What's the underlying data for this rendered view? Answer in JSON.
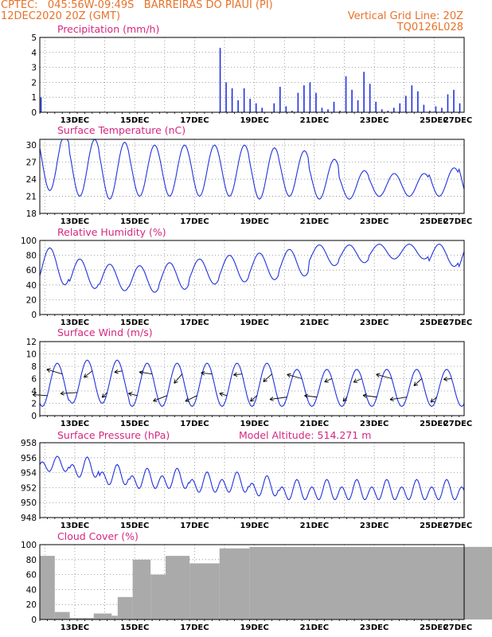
{
  "header": {
    "line1_left": "CPTEC:   045:56W-09:49S   BARREIRAS DO PIAUI (PI)",
    "line2_left": "12DEC2020 20Z (GMT)",
    "line2_right": "Vertical Grid Line: 20Z",
    "line3_right": "TQ0126L028"
  },
  "colors": {
    "header": "#e8722a",
    "title": "#d62780",
    "series": "#2233dd",
    "cloud": "#aaaaaa"
  },
  "chart_data": [
    {
      "type": "bar",
      "title": "Precipitation (mm/h)",
      "ylim": [
        0,
        5
      ],
      "yticks": [
        0,
        1,
        2,
        3,
        4,
        5
      ],
      "x_range": [
        "12DEC2020 20Z",
        "27DEC2020 00Z"
      ],
      "x_ticks": [
        "13DEC",
        "15DEC",
        "17DEC",
        "19DEC",
        "21DEC",
        "23DEC",
        "25DEC",
        "27DEC"
      ],
      "x_days": [
        6.0,
        6.2,
        6.4,
        6.6,
        6.8,
        7.0,
        7.2,
        7.4,
        7.6,
        7.8,
        8.0,
        8.2,
        8.4,
        8.6,
        8.8,
        9.0,
        9.2,
        9.4,
        9.6,
        9.8,
        10.0,
        10.2,
        10.4,
        10.6,
        10.8,
        11.0,
        11.2,
        11.4,
        11.6,
        11.8,
        12.0,
        12.2,
        12.4,
        12.6,
        12.8,
        13.0,
        13.2,
        13.4,
        13.6,
        13.8,
        14.0
      ],
      "values": [
        4.3,
        2.0,
        1.6,
        0.8,
        1.6,
        0.9,
        0.6,
        0.3,
        0.0,
        0.6,
        1.7,
        0.4,
        0.1,
        1.3,
        1.8,
        2.0,
        1.3,
        0.3,
        0.2,
        0.7,
        0.1,
        2.4,
        1.5,
        0.8,
        2.7,
        1.9,
        0.7,
        0.2,
        0.1,
        0.3,
        0.6,
        1.1,
        1.8,
        1.4,
        0.5,
        0.1,
        0.4,
        0.3,
        1.2,
        1.5,
        0.6
      ]
    },
    {
      "type": "line",
      "title": "Surface Temperature (nC)",
      "ylim": [
        18,
        31
      ],
      "yticks": [
        18,
        21,
        24,
        27,
        30
      ],
      "x_ticks": [
        "13DEC",
        "15DEC",
        "17DEC",
        "19DEC",
        "21DEC",
        "23DEC",
        "25DEC",
        "27DEC"
      ],
      "mean": [
        27,
        26,
        25.5,
        25.5,
        25.5,
        25.5,
        25.5,
        25,
        25,
        24,
        23,
        23,
        23,
        23.5,
        24,
        24.5
      ],
      "amplitude": [
        5,
        5,
        5,
        4.5,
        4.5,
        4.5,
        4.5,
        4.5,
        4.0,
        3.5,
        2.5,
        2.0,
        2.0,
        2.5,
        3.5,
        3.5
      ],
      "phase_hour": 16
    },
    {
      "type": "line",
      "title": "Relative Humidity (%)",
      "ylim": [
        0,
        100
      ],
      "yticks": [
        0,
        20,
        40,
        60,
        80,
        100
      ],
      "x_ticks": [
        "13DEC",
        "15DEC",
        "17DEC",
        "19DEC",
        "21DEC",
        "23DEC",
        "25DEC",
        "27DEC"
      ],
      "mean": [
        65,
        55,
        50,
        48,
        52,
        58,
        62,
        65,
        70,
        80,
        82,
        85,
        85,
        80,
        75,
        72
      ],
      "amplitude": [
        25,
        20,
        18,
        18,
        18,
        17,
        18,
        18,
        18,
        14,
        12,
        10,
        10,
        15,
        20,
        20
      ],
      "phase_hour": 16
    },
    {
      "type": "line",
      "title": "Surface Wind (m/s)",
      "ylim": [
        0,
        12
      ],
      "yticks": [
        0,
        2,
        4,
        6,
        8,
        10,
        12
      ],
      "x_ticks": [
        "13DEC",
        "15DEC",
        "17DEC",
        "19DEC",
        "21DEC",
        "23DEC",
        "25DEC",
        "27DEC"
      ],
      "mean": [
        5,
        5.5,
        5.5,
        5,
        5,
        5,
        5,
        5,
        4.5,
        4.5,
        4.5,
        4.5,
        4.5,
        4.5,
        4.5,
        5
      ],
      "amplitude": [
        3.5,
        3.5,
        3.5,
        3.5,
        3.5,
        3.5,
        3.5,
        3.5,
        3.0,
        3.0,
        3.0,
        3.0,
        3.0,
        3.0,
        3.0,
        3.5
      ],
      "phase_hour": 10
    },
    {
      "type": "line",
      "title": "Surface Pressure (hPa)",
      "annotation": "Model Altitude: 514.271 m",
      "ylim": [
        948,
        958
      ],
      "yticks": [
        948,
        950,
        952,
        954,
        956,
        958
      ],
      "x_ticks": [
        "13DEC",
        "15DEC",
        "17DEC",
        "19DEC",
        "21DEC",
        "23DEC",
        "25DEC",
        "27DEC"
      ],
      "mean": [
        955,
        954.5,
        953.5,
        953,
        953,
        952.5,
        952.5,
        952,
        951.5,
        951.5,
        951.5,
        951.5,
        951.5,
        951.5,
        951.5,
        951
      ],
      "amplitude": [
        1.5,
        2,
        2,
        2,
        2,
        2,
        2,
        2,
        2,
        2,
        2,
        2,
        2,
        2,
        2,
        2.3
      ]
    },
    {
      "type": "bar",
      "title": "Cloud Cover (%)",
      "ylim": [
        0,
        100
      ],
      "yticks": [
        0,
        20,
        40,
        60,
        80,
        100
      ],
      "x_ticks": [
        "13DEC",
        "15DEC",
        "17DEC",
        "19DEC",
        "21DEC",
        "23DEC",
        "25DEC",
        "27DEC"
      ],
      "segments_days": [
        0,
        0.5,
        1.0,
        1.8,
        2.4,
        2.6,
        3.1,
        3.7,
        4.2,
        5.0,
        6.0,
        7.0,
        15.2
      ],
      "segment_levels": [
        85,
        10,
        2,
        8,
        5,
        30,
        80,
        60,
        85,
        75,
        95,
        97
      ]
    }
  ]
}
